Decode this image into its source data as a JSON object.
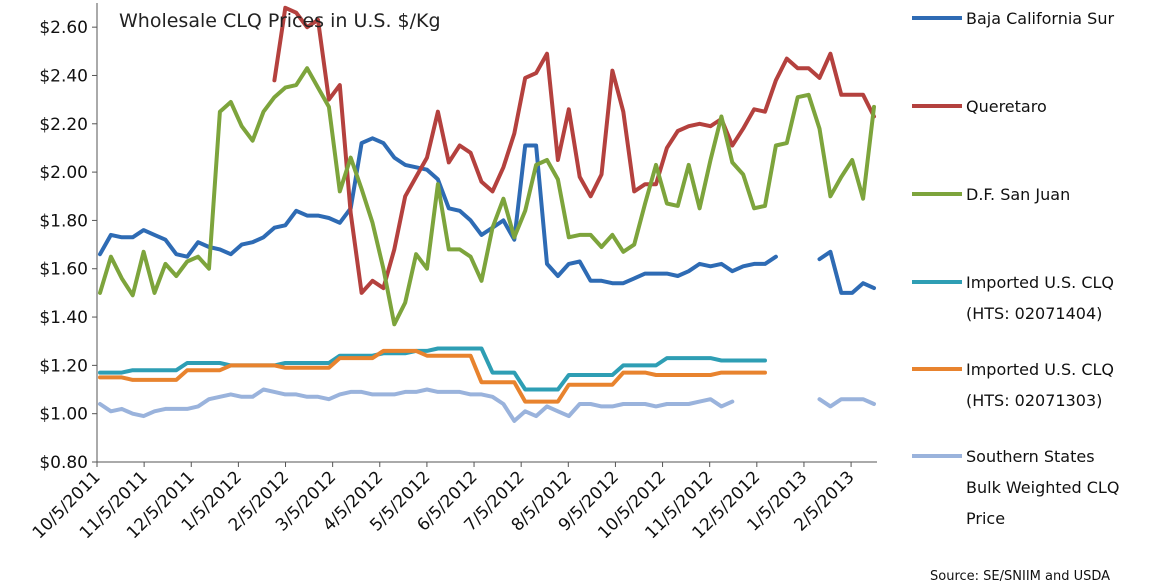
{
  "chart_data": {
    "type": "line",
    "title": "Wholesale CLQ Prices in U.S. $/Kg",
    "ylim": [
      0.8,
      2.7
    ],
    "yticks": [
      "$0.80",
      "$1.00",
      "$1.20",
      "$1.40",
      "$1.60",
      "$1.80",
      "$2.00",
      "$2.20",
      "$2.40",
      "$2.60"
    ],
    "ytick_values": [
      0.8,
      1.0,
      1.2,
      1.4,
      1.6,
      1.8,
      2.0,
      2.2,
      2.4,
      2.6
    ],
    "xticks": [
      "10/5/2011",
      "11/5/2011",
      "12/5/2011",
      "1/5/2012",
      "2/5/2012",
      "3/5/2012",
      "4/5/2012",
      "5/5/2012",
      "6/5/2012",
      "7/5/2012",
      "8/5/2012",
      "9/5/2012",
      "10/5/2012",
      "11/5/2012",
      "12/5/2012",
      "1/5/2013",
      "2/5/2013"
    ],
    "x_range": [
      0,
      71
    ],
    "legend_position": "right",
    "grid": false,
    "source": "Source: SE/SNIIM and USDA",
    "series": [
      {
        "name": "Baja California Sur",
        "color": "#2E6BB4",
        "values": [
          1.66,
          1.74,
          1.73,
          1.73,
          1.76,
          1.74,
          1.72,
          1.66,
          1.65,
          1.71,
          1.69,
          1.68,
          1.66,
          1.7,
          1.71,
          1.73,
          1.77,
          1.78,
          1.84,
          1.82,
          1.82,
          1.81,
          1.79,
          1.85,
          2.12,
          2.14,
          2.12,
          2.06,
          2.03,
          2.02,
          2.01,
          1.97,
          1.85,
          1.84,
          1.8,
          1.74,
          1.77,
          1.8,
          1.72,
          2.11,
          2.11,
          1.62,
          1.57,
          1.62,
          1.63,
          1.55,
          1.55,
          1.54,
          1.54,
          1.56,
          1.58,
          1.58,
          1.58,
          1.57,
          1.59,
          1.62,
          1.61,
          1.62,
          1.59,
          1.61,
          1.62,
          1.62,
          1.65,
          null,
          null,
          null,
          1.64,
          1.67,
          1.5,
          1.5,
          1.54,
          1.52
        ]
      },
      {
        "name": "Queretaro",
        "color": "#B4413E",
        "values": [
          null,
          null,
          null,
          null,
          null,
          null,
          null,
          null,
          null,
          null,
          null,
          null,
          null,
          null,
          null,
          null,
          2.38,
          2.68,
          2.66,
          2.6,
          2.63,
          2.3,
          2.36,
          1.83,
          1.5,
          1.55,
          1.52,
          1.68,
          1.9,
          1.98,
          2.06,
          2.25,
          2.04,
          2.11,
          2.08,
          1.96,
          1.92,
          2.02,
          2.16,
          2.39,
          2.41,
          2.49,
          2.05,
          2.26,
          1.98,
          1.9,
          1.99,
          2.42,
          2.25,
          1.92,
          1.95,
          1.95,
          2.1,
          2.17,
          2.19,
          2.2,
          2.19,
          2.22,
          2.11,
          2.18,
          2.26,
          2.25,
          2.38,
          2.47,
          2.43,
          2.43,
          2.39,
          2.49,
          2.32,
          2.32,
          2.32,
          2.23
        ]
      },
      {
        "name": "D.F. San Juan",
        "color": "#7DA43C",
        "values": [
          1.5,
          1.65,
          1.56,
          1.49,
          1.67,
          1.5,
          1.62,
          1.57,
          1.63,
          1.65,
          1.6,
          2.25,
          2.29,
          2.19,
          2.13,
          2.25,
          2.31,
          2.35,
          2.36,
          2.43,
          2.35,
          2.27,
          1.92,
          2.06,
          1.93,
          1.79,
          1.6,
          1.37,
          1.46,
          1.66,
          1.6,
          1.95,
          1.68,
          1.68,
          1.65,
          1.55,
          1.77,
          1.89,
          1.73,
          1.84,
          2.03,
          2.05,
          1.97,
          1.73,
          1.74,
          1.74,
          1.69,
          1.74,
          1.67,
          1.7,
          1.87,
          2.03,
          1.87,
          1.86,
          2.03,
          1.85,
          2.05,
          2.23,
          2.04,
          1.99,
          1.85,
          1.86,
          2.11,
          2.12,
          2.31,
          2.32,
          2.18,
          1.9,
          1.98,
          2.05,
          1.89,
          2.27
        ]
      },
      {
        "name": "Imported U.S. CLQ (HTS: 02071404)",
        "label_lines": [
          "Imported U.S. CLQ",
          "(HTS: 02071404)"
        ],
        "color": "#2E9EB4",
        "values": [
          1.17,
          1.17,
          1.17,
          1.18,
          1.18,
          1.18,
          1.18,
          1.18,
          1.21,
          1.21,
          1.21,
          1.21,
          1.2,
          1.2,
          1.2,
          1.2,
          1.2,
          1.21,
          1.21,
          1.21,
          1.21,
          1.21,
          1.24,
          1.24,
          1.24,
          1.24,
          1.25,
          1.25,
          1.25,
          1.26,
          1.26,
          1.27,
          1.27,
          1.27,
          1.27,
          1.27,
          1.17,
          1.17,
          1.17,
          1.1,
          1.1,
          1.1,
          1.1,
          1.16,
          1.16,
          1.16,
          1.16,
          1.16,
          1.2,
          1.2,
          1.2,
          1.2,
          1.23,
          1.23,
          1.23,
          1.23,
          1.23,
          1.22,
          1.22,
          1.22,
          1.22,
          1.22,
          null,
          null,
          null,
          null,
          null,
          null,
          null,
          null,
          null,
          null
        ]
      },
      {
        "name": "Imported U.S. CLQ (HTS: 02071303)",
        "label_lines": [
          "Imported U.S. CLQ",
          "(HTS: 02071303)"
        ],
        "color": "#E8832E",
        "values": [
          1.15,
          1.15,
          1.15,
          1.14,
          1.14,
          1.14,
          1.14,
          1.14,
          1.18,
          1.18,
          1.18,
          1.18,
          1.2,
          1.2,
          1.2,
          1.2,
          1.2,
          1.19,
          1.19,
          1.19,
          1.19,
          1.19,
          1.23,
          1.23,
          1.23,
          1.23,
          1.26,
          1.26,
          1.26,
          1.26,
          1.24,
          1.24,
          1.24,
          1.24,
          1.24,
          1.13,
          1.13,
          1.13,
          1.13,
          1.05,
          1.05,
          1.05,
          1.05,
          1.12,
          1.12,
          1.12,
          1.12,
          1.12,
          1.17,
          1.17,
          1.17,
          1.16,
          1.16,
          1.16,
          1.16,
          1.16,
          1.16,
          1.17,
          1.17,
          1.17,
          1.17,
          1.17,
          null,
          null,
          null,
          null,
          null,
          null,
          null,
          null,
          null,
          null
        ]
      },
      {
        "name": "Southern States Bulk Weighted CLQ Price",
        "label_lines": [
          "Southern States",
          "Bulk Weighted CLQ",
          "Price"
        ],
        "color": "#9AB3DC",
        "values": [
          1.04,
          1.01,
          1.02,
          1.0,
          0.99,
          1.01,
          1.02,
          1.02,
          1.02,
          1.03,
          1.06,
          1.07,
          1.08,
          1.07,
          1.07,
          1.1,
          1.09,
          1.08,
          1.08,
          1.07,
          1.07,
          1.06,
          1.08,
          1.09,
          1.09,
          1.08,
          1.08,
          1.08,
          1.09,
          1.09,
          1.1,
          1.09,
          1.09,
          1.09,
          1.08,
          1.08,
          1.07,
          1.04,
          0.97,
          1.01,
          0.99,
          1.03,
          1.01,
          0.99,
          1.04,
          1.04,
          1.03,
          1.03,
          1.04,
          1.04,
          1.04,
          1.03,
          1.04,
          1.04,
          1.04,
          1.05,
          1.06,
          1.03,
          1.05,
          null,
          null,
          null,
          null,
          null,
          null,
          null,
          1.06,
          1.03,
          1.06,
          1.06,
          1.06,
          1.04
        ]
      }
    ]
  }
}
